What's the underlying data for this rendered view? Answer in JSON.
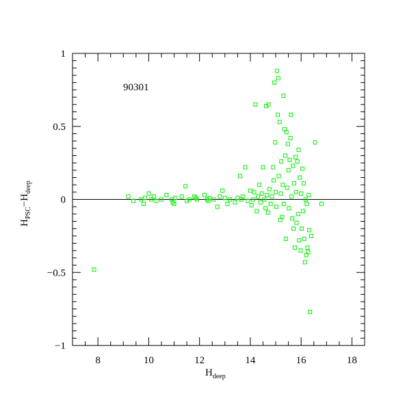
{
  "chart_data": {
    "type": "scatter",
    "annotation": "90301",
    "xlabel": {
      "main": "H",
      "sub": "deep"
    },
    "ylabel": {
      "main1": "H",
      "sub1": "PSC",
      "dash": "−",
      "main2": "H",
      "sub2": "deep"
    },
    "xlim": [
      7,
      18.5
    ],
    "ylim": [
      -1,
      1
    ],
    "xticks": [
      8,
      10,
      12,
      14,
      16,
      18
    ],
    "xtick_labels": [
      "8",
      "10",
      "12",
      "14",
      "16",
      "18"
    ],
    "yticks": [
      -1,
      -0.5,
      0,
      0.5,
      1
    ],
    "ytick_labels": [
      "−1",
      "−0.5",
      "0",
      "0.5",
      "1"
    ],
    "reference_line_y": 0,
    "grid": false,
    "marker": "open-square",
    "marker_color": "#00ee00",
    "points": [
      [
        7.85,
        -0.48
      ],
      [
        9.2,
        0.02
      ],
      [
        9.4,
        -0.01
      ],
      [
        9.7,
        0.0
      ],
      [
        9.8,
        -0.03
      ],
      [
        9.85,
        0.01
      ],
      [
        10.0,
        0.04
      ],
      [
        10.1,
        0.0
      ],
      [
        10.2,
        0.02
      ],
      [
        10.3,
        -0.01
      ],
      [
        10.5,
        0.0
      ],
      [
        10.7,
        0.03
      ],
      [
        10.9,
        0.0
      ],
      [
        10.95,
        -0.02
      ],
      [
        11.0,
        -0.03
      ],
      [
        11.05,
        0.01
      ],
      [
        11.3,
        0.02
      ],
      [
        11.45,
        0.09
      ],
      [
        11.5,
        -0.01
      ],
      [
        11.6,
        0.0
      ],
      [
        11.8,
        0.02
      ],
      [
        11.85,
        0.01
      ],
      [
        11.9,
        0.0
      ],
      [
        12.2,
        0.03
      ],
      [
        12.3,
        0.0
      ],
      [
        12.35,
        -0.01
      ],
      [
        12.4,
        0.01
      ],
      [
        12.55,
        0.0
      ],
      [
        12.7,
        -0.05
      ],
      [
        12.8,
        0.02
      ],
      [
        12.9,
        0.06
      ],
      [
        13.0,
        0.01
      ],
      [
        13.1,
        -0.03
      ],
      [
        13.2,
        0.0
      ],
      [
        13.4,
        -0.02
      ],
      [
        13.5,
        0.01
      ],
      [
        13.6,
        0.16
      ],
      [
        13.65,
        0.0
      ],
      [
        13.7,
        0.02
      ],
      [
        13.8,
        0.22
      ],
      [
        13.9,
        -0.01
      ],
      [
        14.0,
        0.06
      ],
      [
        14.05,
        -0.04
      ],
      [
        14.1,
        0.0
      ],
      [
        14.15,
        0.05
      ],
      [
        14.2,
        0.65
      ],
      [
        14.25,
        -0.08
      ],
      [
        14.3,
        0.02
      ],
      [
        14.35,
        0.1
      ],
      [
        14.4,
        -0.02
      ],
      [
        14.45,
        0.04
      ],
      [
        14.5,
        0.22
      ],
      [
        14.55,
        0.0
      ],
      [
        14.6,
        -0.06
      ],
      [
        14.62,
        0.64
      ],
      [
        14.65,
        0.03
      ],
      [
        14.7,
        -0.09
      ],
      [
        14.72,
        0.65
      ],
      [
        14.75,
        0.07
      ],
      [
        14.8,
        -0.03
      ],
      [
        14.85,
        0.02
      ],
      [
        14.9,
        0.22
      ],
      [
        14.92,
        0.13
      ],
      [
        14.95,
        0.8
      ],
      [
        14.98,
        0.39
      ],
      [
        15.0,
        0.05
      ],
      [
        15.02,
        -0.05
      ],
      [
        15.05,
        0.88
      ],
      [
        15.08,
        0.58
      ],
      [
        15.1,
        0.83
      ],
      [
        15.12,
        0.16
      ],
      [
        15.15,
        0.53
      ],
      [
        15.18,
        -0.14
      ],
      [
        15.2,
        0.04
      ],
      [
        15.22,
        0.26
      ],
      [
        15.25,
        -0.12
      ],
      [
        15.28,
        0.1
      ],
      [
        15.3,
        0.71
      ],
      [
        15.32,
        -0.03
      ],
      [
        15.35,
        0.48
      ],
      [
        15.38,
        0.3
      ],
      [
        15.4,
        -0.27
      ],
      [
        15.42,
        0.46
      ],
      [
        15.45,
        0.08
      ],
      [
        15.48,
        0.38
      ],
      [
        15.5,
        0.2
      ],
      [
        15.52,
        -0.06
      ],
      [
        15.55,
        0.27
      ],
      [
        15.58,
        0.42
      ],
      [
        15.6,
        0.58
      ],
      [
        15.62,
        0.02
      ],
      [
        15.65,
        -0.13
      ],
      [
        15.68,
        0.23
      ],
      [
        15.7,
        -0.2
      ],
      [
        15.72,
        0.11
      ],
      [
        15.75,
        -0.33
      ],
      [
        15.78,
        0.29
      ],
      [
        15.8,
        0.05
      ],
      [
        15.82,
        -0.16
      ],
      [
        15.85,
        0.26
      ],
      [
        15.88,
        -0.1
      ],
      [
        15.9,
        0.34
      ],
      [
        15.92,
        -0.28
      ],
      [
        15.95,
        0.15
      ],
      [
        15.98,
        -0.35
      ],
      [
        16.0,
        0.04
      ],
      [
        16.02,
        -0.2
      ],
      [
        16.05,
        0.21
      ],
      [
        16.08,
        -0.08
      ],
      [
        16.1,
        0.11
      ],
      [
        16.12,
        -0.27
      ],
      [
        16.15,
        -0.43
      ],
      [
        16.18,
        0.0
      ],
      [
        16.2,
        -0.38
      ],
      [
        16.22,
        -0.03
      ],
      [
        16.25,
        -0.33
      ],
      [
        16.28,
        -0.36
      ],
      [
        16.3,
        0.03
      ],
      [
        16.32,
        -0.21
      ],
      [
        16.35,
        -0.77
      ],
      [
        16.4,
        -0.25
      ],
      [
        16.55,
        0.39
      ],
      [
        16.8,
        -0.03
      ]
    ]
  }
}
